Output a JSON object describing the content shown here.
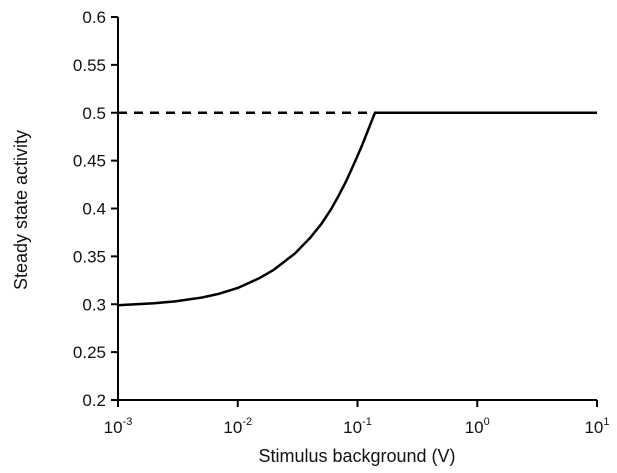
{
  "chart_data": {
    "type": "line",
    "title": "",
    "xlabel": "Stimulus background (V)",
    "ylabel": "Steady state activity",
    "xscale": "log",
    "xlim": [
      0.001,
      10
    ],
    "ylim": [
      0.2,
      0.6
    ],
    "grid": false,
    "x_ticks": [
      {
        "value": 0.001,
        "base": "10",
        "exp": "-3"
      },
      {
        "value": 0.01,
        "base": "10",
        "exp": "-2"
      },
      {
        "value": 0.1,
        "base": "10",
        "exp": "-1"
      },
      {
        "value": 1,
        "base": "10",
        "exp": "0"
      },
      {
        "value": 10,
        "base": "10",
        "exp": "1"
      }
    ],
    "y_ticks": [
      {
        "value": 0.2,
        "label": "0.2"
      },
      {
        "value": 0.25,
        "label": "0.25"
      },
      {
        "value": 0.3,
        "label": "0.3"
      },
      {
        "value": 0.35,
        "label": "0.35"
      },
      {
        "value": 0.4,
        "label": "0.4"
      },
      {
        "value": 0.45,
        "label": "0.45"
      },
      {
        "value": 0.5,
        "label": "0.5"
      },
      {
        "value": 0.55,
        "label": "0.55"
      },
      {
        "value": 0.6,
        "label": "0.6"
      }
    ],
    "series": [
      {
        "style": "solid",
        "color": "#000000",
        "x": [
          0.001,
          0.002,
          0.003,
          0.005,
          0.007,
          0.01,
          0.015,
          0.02,
          0.03,
          0.04,
          0.05,
          0.06,
          0.07,
          0.08,
          0.09,
          0.1,
          0.11,
          0.12,
          0.13,
          0.14,
          0.3,
          1,
          3,
          10
        ],
        "y": [
          0.299,
          0.301,
          0.303,
          0.307,
          0.311,
          0.317,
          0.327,
          0.336,
          0.353,
          0.369,
          0.384,
          0.399,
          0.414,
          0.428,
          0.442,
          0.455,
          0.467,
          0.479,
          0.49,
          0.5,
          0.5,
          0.5,
          0.5,
          0.5
        ]
      },
      {
        "style": "dashed",
        "color": "#000000",
        "x": [
          0.001,
          0.14
        ],
        "y": [
          0.5,
          0.5
        ]
      }
    ]
  }
}
